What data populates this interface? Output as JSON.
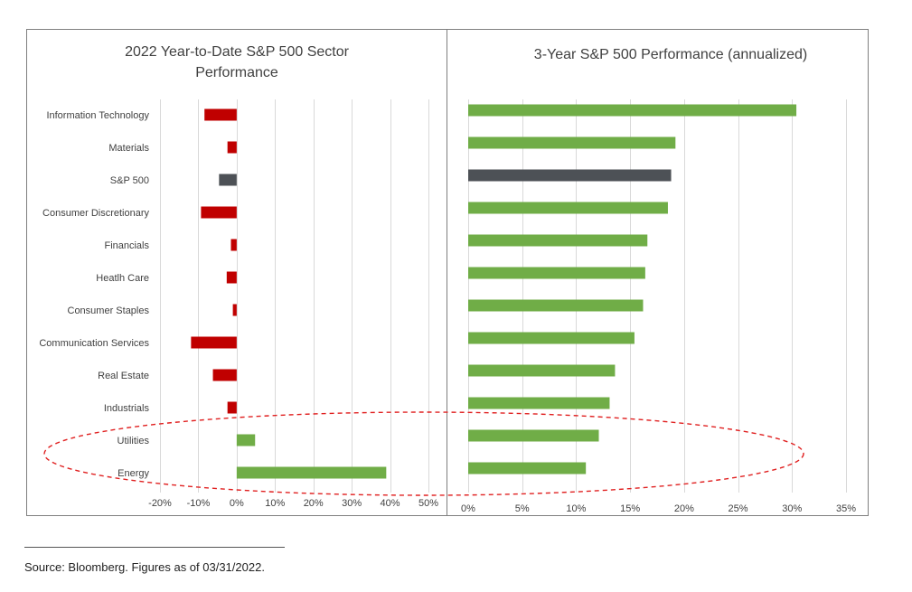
{
  "colors": {
    "positive": "#70ad47",
    "negative": "#c00000",
    "index": "#4d5156",
    "grid": "#d9d9d9",
    "frame": "#7f7f7f",
    "highlight": "#e02020",
    "text": "#404040"
  },
  "chart_data": [
    {
      "type": "bar",
      "orientation": "horizontal",
      "title": "2022 Year-to-Date S&P 500 Sector Performance",
      "title_lines": [
        "2022 Year-to-Date S&P 500 Sector",
        "Performance"
      ],
      "categories": [
        "Information Technology",
        "Materials",
        "S&P 500",
        "Consumer Discretionary",
        "Financials",
        "Heatlh Care",
        "Consumer Staples",
        "Communication Services",
        "Real Estate",
        "Industrials",
        "Utilities",
        "Energy"
      ],
      "values": [
        -8.4,
        -2.4,
        -4.6,
        -9.3,
        -1.5,
        -2.6,
        -1.0,
        -11.9,
        -6.2,
        -2.4,
        4.8,
        39.0
      ],
      "xlim": [
        -20,
        50
      ],
      "ticks": [
        -20,
        -10,
        0,
        10,
        20,
        30,
        40,
        50
      ],
      "tick_labels": [
        "-20%",
        "-10%",
        "0%",
        "10%",
        "20%",
        "30%",
        "40%",
        "50%"
      ],
      "grid": true,
      "xlabel": "",
      "ylabel": ""
    },
    {
      "type": "bar",
      "orientation": "horizontal",
      "title": "3-Year S&P 500 Performance (annualized)",
      "categories": [
        "Information Technology",
        "Materials",
        "S&P 500",
        "Consumer Discretionary",
        "Financials",
        "Heatlh Care",
        "Consumer Staples",
        "Communication Services",
        "Real Estate",
        "Industrials",
        "Utilities",
        "Energy"
      ],
      "values": [
        30.4,
        19.2,
        18.8,
        18.5,
        16.6,
        16.4,
        16.2,
        15.4,
        13.6,
        13.1,
        12.1,
        10.9
      ],
      "xlim": [
        0,
        35
      ],
      "ticks": [
        0,
        5,
        10,
        15,
        20,
        25,
        30,
        35
      ],
      "tick_labels": [
        "0%",
        "5%",
        "10%",
        "15%",
        "20%",
        "25%",
        "30%",
        "35%"
      ],
      "grid": true,
      "xlabel": "",
      "ylabel": ""
    }
  ],
  "highlight_note": "Utilities and Energy circled",
  "footer": {
    "source": "Source: Bloomberg. Figures as of 03/31/2022."
  }
}
